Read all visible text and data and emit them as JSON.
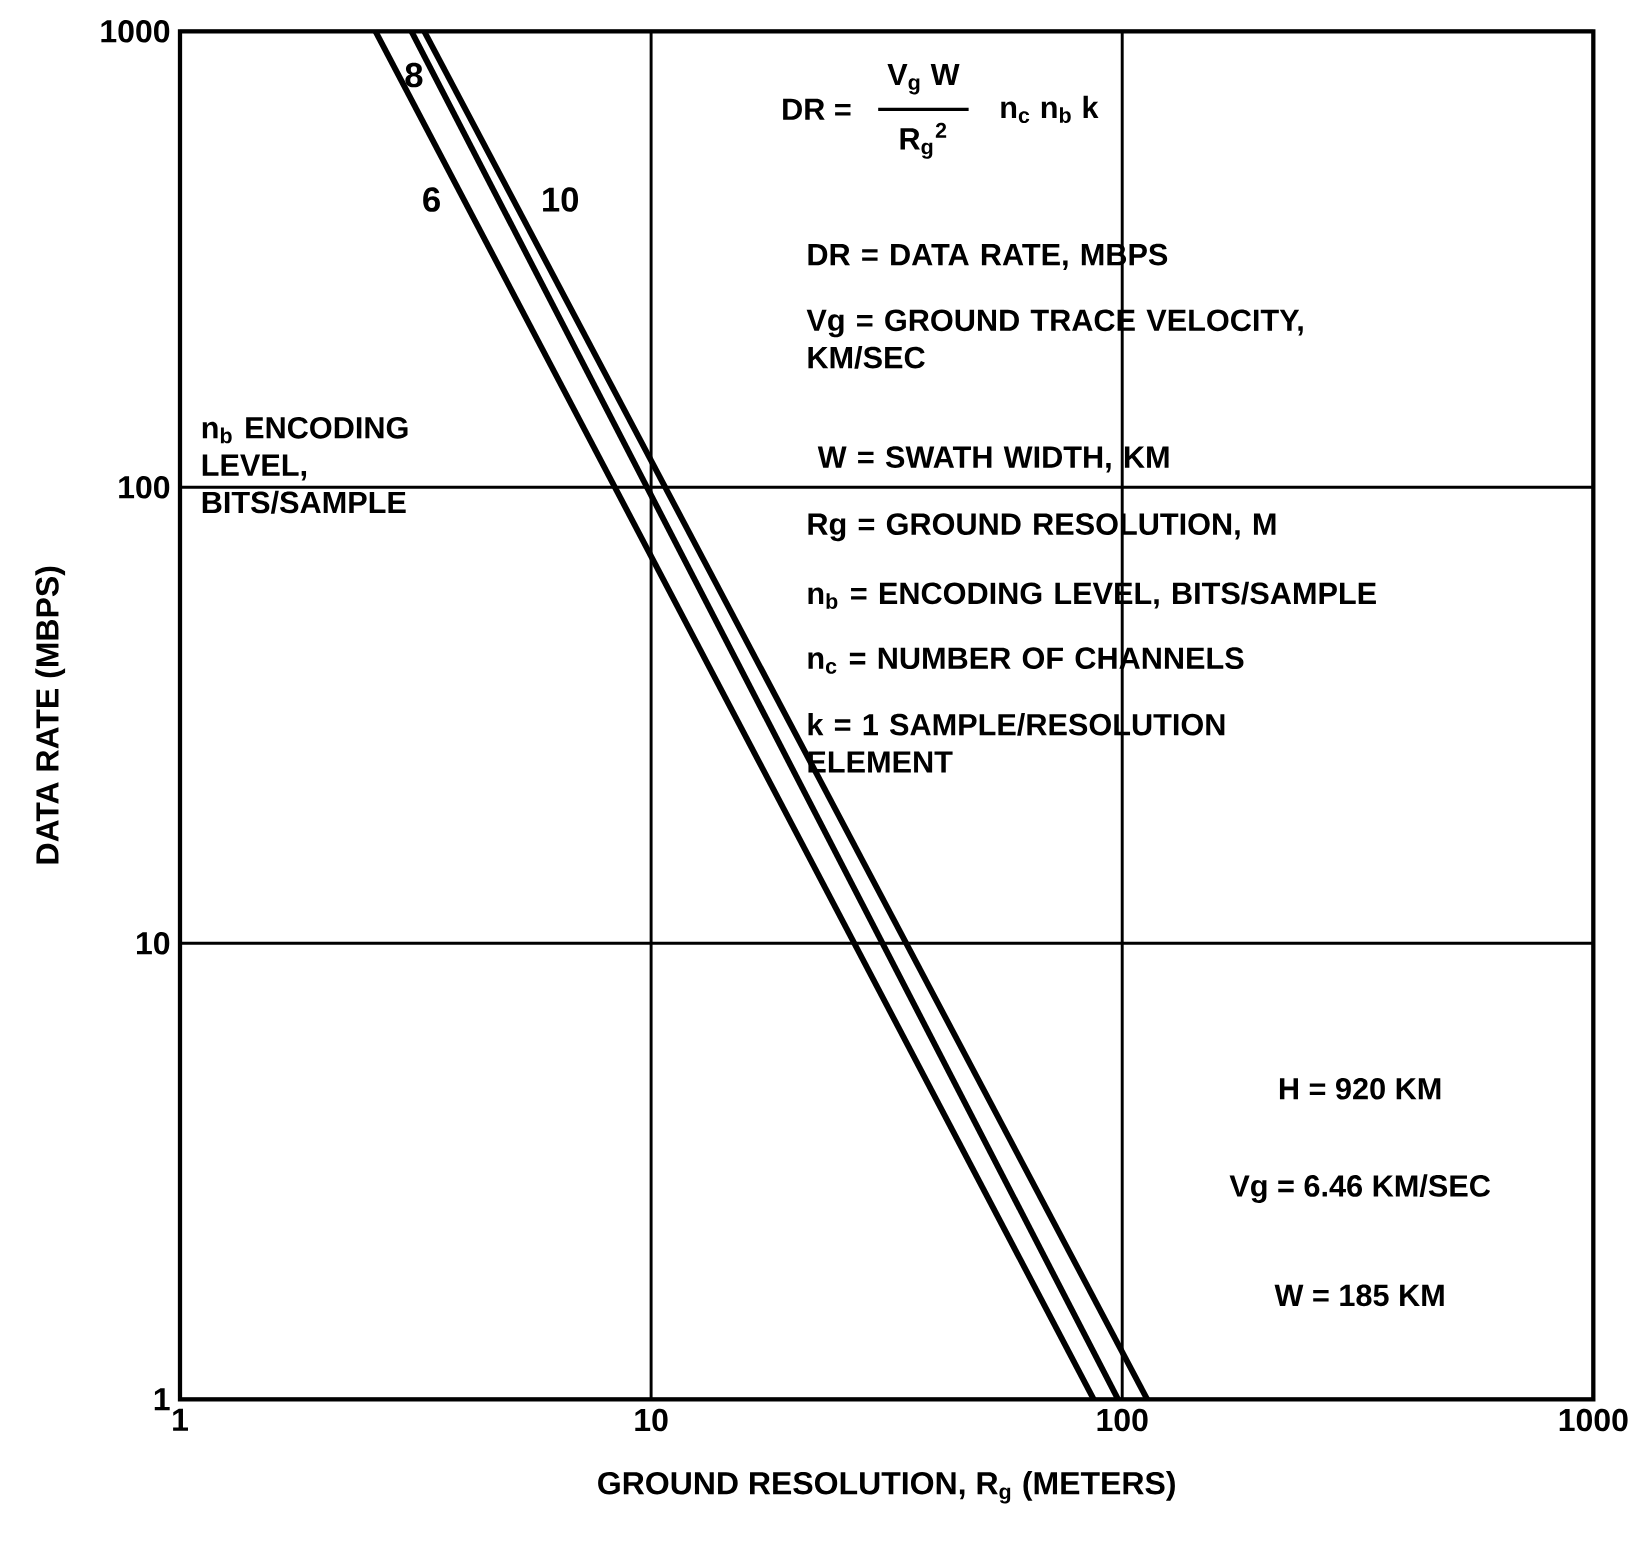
{
  "chart_data": {
    "type": "line",
    "xlabel": "GROUND RESOLUTION, R$_{g}$ (METERS)",
    "ylabel": "DATA RATE (MBPS)",
    "log": "xy",
    "grid": true,
    "xlim": [
      1,
      1000
    ],
    "ylim": [
      1,
      1000
    ],
    "xticks": [
      1,
      10,
      100,
      1000
    ],
    "yticks": [
      1,
      10,
      100,
      1000
    ],
    "series": [
      {
        "name": "6",
        "color": "#000000",
        "x": [
          2.6,
          87
        ],
        "values": [
          1000,
          1
        ]
      },
      {
        "name": "8",
        "color": "#000000",
        "x": [
          3.1,
          98
        ],
        "values": [
          1000,
          1
        ]
      },
      {
        "name": "10",
        "color": "#000000",
        "x": [
          3.3,
          113
        ],
        "values": [
          1000,
          1
        ]
      }
    ],
    "legend_title": "n$_{b}$ ENCODING LEVEL, BITS/SAMPLE",
    "annotations": [
      "DR =",
      "V$_{g}$ W",
      "R$_{g}$$^{2}$",
      "n$_{c}$  n$_{b}$  k",
      "DR = DATA RATE, MBPS",
      "Vg = GROUND TRACE VELOCITY, KM/SEC",
      "W = SWATH WIDTH, KM",
      "Rg = GROUND RESOLUTION, M",
      "n$_{b}$ = ENCODING LEVEL, BITS/SAMPLE",
      "n$_{c}$ = NUMBER OF CHANNELS",
      "k = 1 SAMPLE/RESOLUTION ELEMENT",
      "H = 920 KM",
      "Vg = 6.46 KM/SEC",
      "W = 185 KM"
    ]
  }
}
